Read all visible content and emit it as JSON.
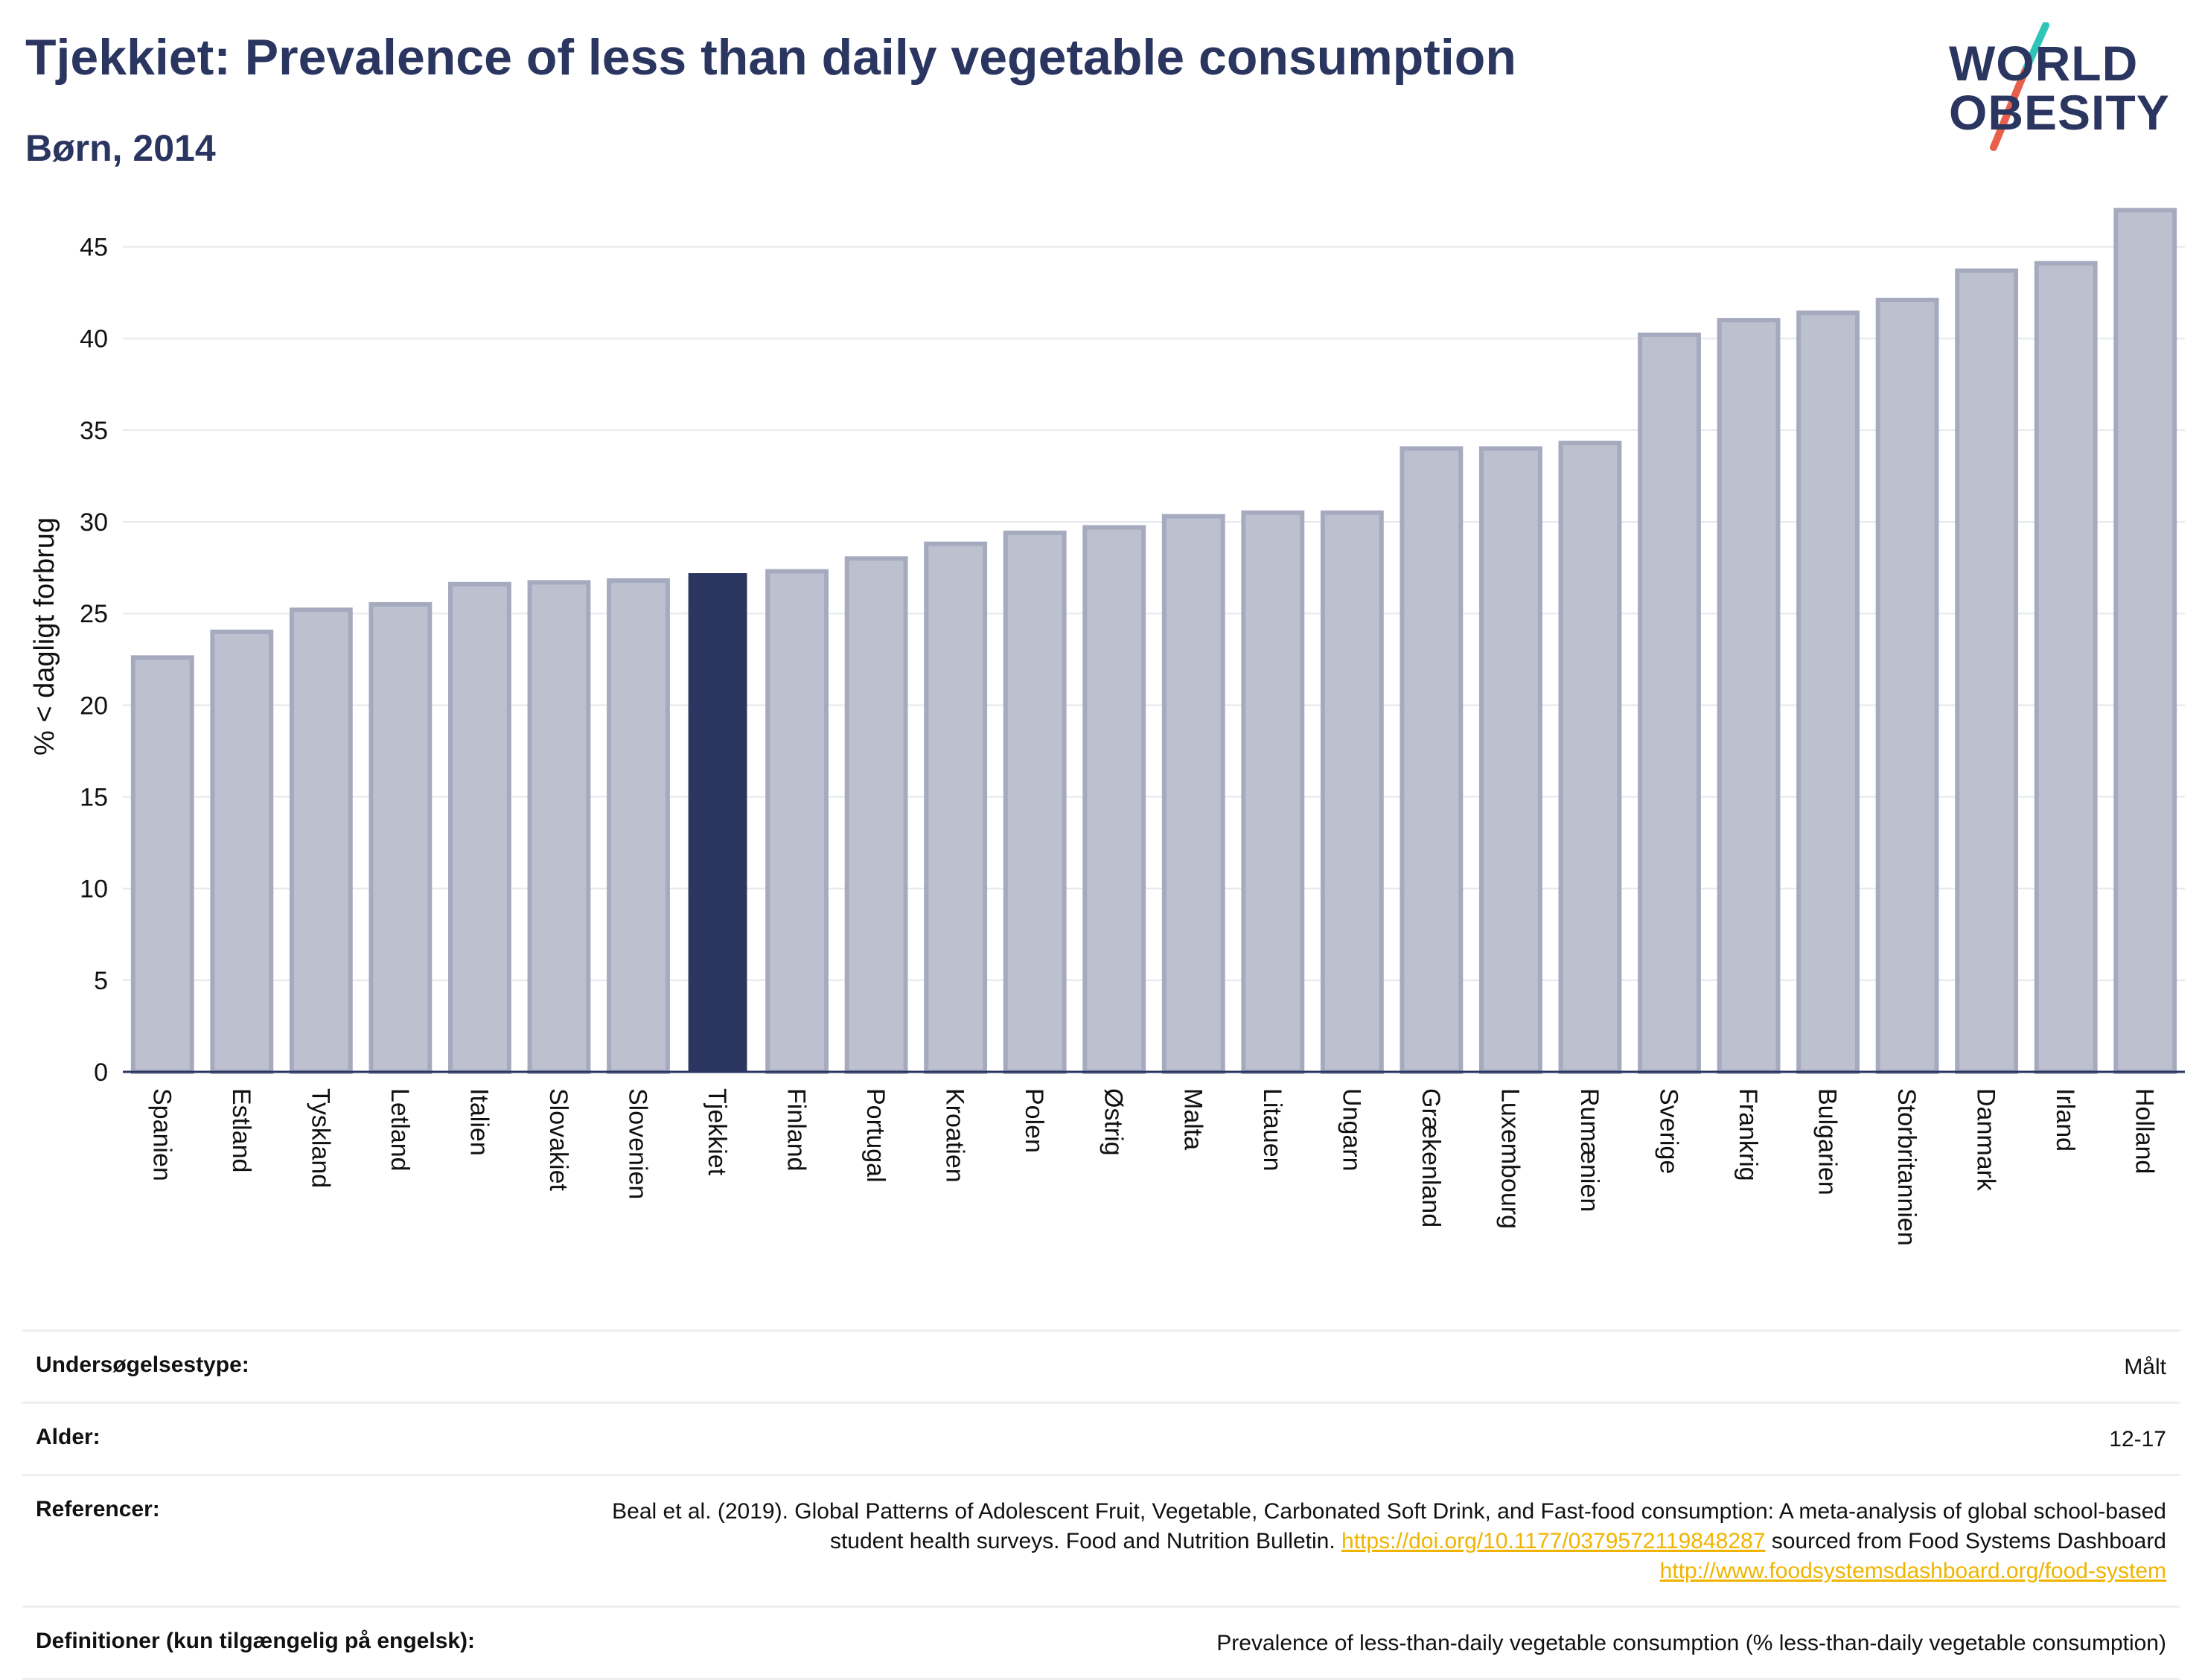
{
  "header": {
    "title": "Tjekkiet: Prevalence of less than daily vegetable consumption",
    "subtitle": "Børn, 2014"
  },
  "logo": {
    "line1": "WORLD",
    "line2": "OBESITY",
    "slash_top_color": "#2ec4b6",
    "slash_bottom_color": "#e8604c"
  },
  "colors": {
    "bar": "#bcc0cf",
    "bar_border": "#a6aabf",
    "highlight": "#2a3560",
    "grid": "#e6e7ec",
    "axis": "#2a3560"
  },
  "chart_data": {
    "type": "bar",
    "title": "Tjekkiet: Prevalence of less than daily vegetable consumption",
    "subtitle": "Børn, 2014",
    "xlabel": "",
    "ylabel": "% < dagligt forbrug",
    "ylim": [
      0,
      47.5
    ],
    "yticks": [
      0,
      5,
      10,
      15,
      20,
      25,
      30,
      35,
      40,
      45
    ],
    "grid": true,
    "highlight": "Tjekkiet",
    "categories": [
      "Spanien",
      "Estland",
      "Tyskland",
      "Letland",
      "Italien",
      "Slovakiet",
      "Slovenien",
      "Tjekkiet",
      "Finland",
      "Portugal",
      "Kroatien",
      "Polen",
      "Østrig",
      "Malta",
      "Litauen",
      "Ungarn",
      "Grækenland",
      "Luxembourg",
      "Rumænien",
      "Sverige",
      "Frankrig",
      "Bulgarien",
      "Storbritannien",
      "Danmark",
      "Irland",
      "Holland"
    ],
    "values": [
      22.6,
      24.0,
      25.2,
      25.5,
      26.6,
      26.7,
      26.8,
      27.2,
      27.3,
      28.0,
      28.8,
      29.4,
      29.7,
      30.3,
      30.5,
      30.5,
      34.0,
      34.0,
      34.3,
      40.2,
      41.0,
      41.4,
      42.1,
      43.7,
      44.1,
      47.0
    ]
  },
  "info": {
    "survey_type_label": "Undersøgelsestype:",
    "survey_type_value": "Målt",
    "age_label": "Alder:",
    "age_value": "12-17",
    "references_label": "Referencer:",
    "references_text1": "Beal et al. (2019). Global Patterns of Adolescent Fruit, Vegetable, Carbonated Soft Drink, and Fast-food consumption: A meta-analysis of global school-based student health surveys. Food and Nutrition Bulletin.",
    "references_link1": "https://doi.org/10.1177/0379572119848287",
    "references_text2": "sourced from Food Systems Dashboard",
    "references_link2": "http://www.foodsystemsdashboard.org/food-system",
    "definitions_label": "Definitioner (kun tilgængelig på engelsk):",
    "definitions_value": "Prevalence of less-than-daily vegetable consumption (% less-than-daily vegetable consumption)"
  }
}
